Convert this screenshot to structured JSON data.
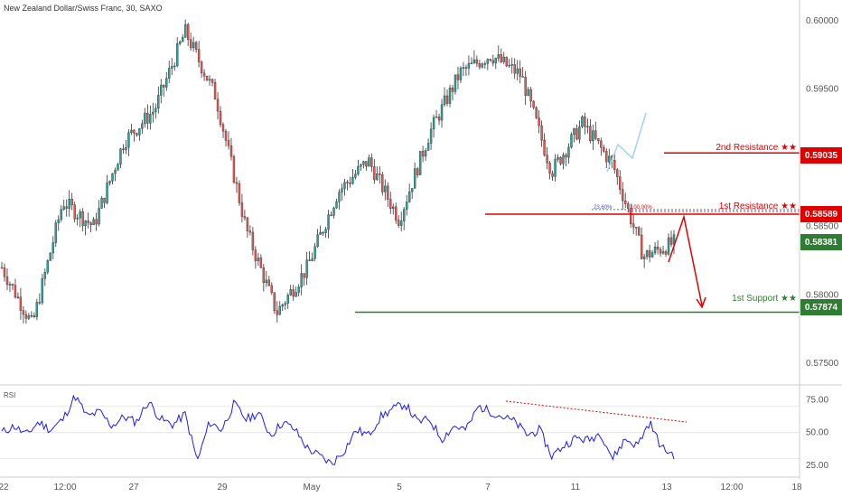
{
  "header": {
    "title": "New Zealand Dollar/Swiss Franc, 30, SAXO"
  },
  "colors": {
    "up": "#26a69a",
    "down": "#ef5350",
    "candle_body": "#333333",
    "resistance": "#e00000",
    "support": "#2e7d32",
    "rsi": "#1a1aff",
    "axis_text": "#555555"
  },
  "levels": {
    "resistance2": {
      "label": "2nd Resistance ★★",
      "value": "0.59035",
      "price": 0.59035
    },
    "resistance1": {
      "label": "1st Resistance ★★",
      "value": "0.58589",
      "price": 0.58589
    },
    "current": {
      "value": "0.58381",
      "price": 0.58381
    },
    "support1": {
      "label": "1st Support ★★",
      "value": "0.57874",
      "price": 0.57874
    }
  },
  "fib": {
    "label_a": "23.60%",
    "label_b": "100.00%"
  },
  "price_axis": {
    "ticks": [
      "0.60000",
      "0.59500",
      "0.58500",
      "0.58000",
      "0.57500"
    ]
  },
  "rsi_panel": {
    "label": "RSI",
    "ticks": [
      "75.00",
      "50.00",
      "25.00"
    ]
  },
  "time_axis": {
    "labels": [
      "22",
      "12:00",
      "27",
      "29",
      "May",
      "5",
      "7",
      "11",
      "13",
      "12:00",
      "18"
    ]
  },
  "chart_data": {
    "type": "line",
    "title": "New Zealand Dollar/Swiss Franc, 30, SAXO",
    "x_labels": [
      "22",
      "12:00",
      "27",
      "29",
      "May",
      "5",
      "7",
      "11",
      "13",
      "12:00",
      "18"
    ],
    "ylim": [
      0.5735,
      0.6015
    ],
    "price_series": {
      "name": "NZD/CHF",
      "points": [
        [
          "22",
          0.582
        ],
        [
          "12:00",
          0.5778
        ],
        [
          "",
          0.5868
        ],
        [
          "27",
          0.585
        ],
        [
          "",
          0.5912
        ],
        [
          "29",
          0.5935
        ],
        [
          "",
          0.5992
        ],
        [
          "",
          0.5945
        ],
        [
          "May",
          0.5848
        ],
        [
          "",
          0.5787
        ],
        [
          "",
          0.582
        ],
        [
          "5",
          0.5875
        ],
        [
          "",
          0.5898
        ],
        [
          "7",
          0.5855
        ],
        [
          "",
          0.5918
        ],
        [
          "",
          0.5962
        ],
        [
          "11",
          0.5975
        ],
        [
          "",
          0.596
        ],
        [
          "",
          0.589
        ],
        [
          "",
          0.5925
        ],
        [
          "",
          0.5895
        ],
        [
          "13",
          0.5828
        ],
        [
          "",
          0.5838
        ]
      ]
    },
    "rsi": {
      "name": "RSI",
      "ylim": [
        20,
        85
      ],
      "values": [
        50,
        55,
        48,
        58,
        52,
        60,
        78,
        62,
        66,
        55,
        62,
        58,
        74,
        60,
        56,
        64,
        28,
        58,
        52,
        72,
        60,
        65,
        48,
        58,
        52,
        38,
        32,
        26,
        36,
        52,
        48,
        62,
        68,
        72,
        58,
        60,
        45,
        55,
        52,
        70,
        66,
        62,
        58,
        48,
        52,
        32,
        40,
        46,
        44,
        50,
        30,
        45,
        40,
        58,
        38,
        33
      ],
      "trendline": [
        74,
        58
      ]
    }
  }
}
